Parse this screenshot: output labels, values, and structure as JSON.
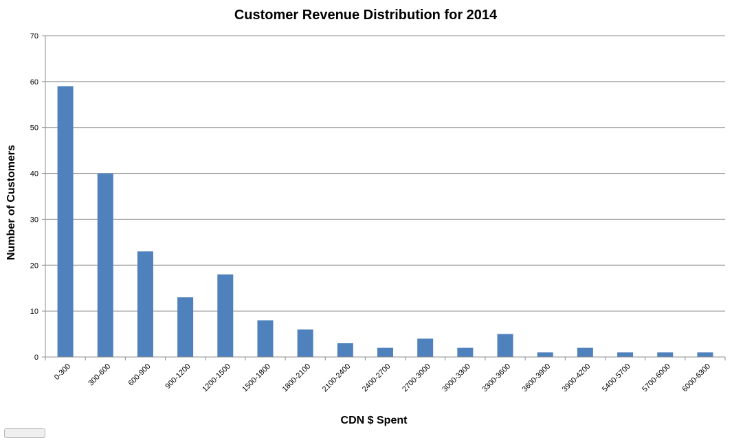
{
  "chart_data": {
    "type": "bar",
    "title": "Customer Revenue Distribution for 2014",
    "xlabel": "CDN $ Spent",
    "ylabel": "Number of Customers",
    "categories": [
      "0-300",
      "300-600",
      "600-900",
      "900-1200",
      "1200-1500",
      "1500-1800",
      "1800-2100",
      "2100-2400",
      "2400-2700",
      "2700-3000",
      "3000-3300",
      "3300-3600",
      "3600-3900",
      "3900-4200",
      "5400-5700",
      "5700-6000",
      "6000-6300"
    ],
    "values": [
      59,
      40,
      23,
      13,
      18,
      8,
      6,
      3,
      2,
      4,
      2,
      5,
      1,
      2,
      1,
      1,
      1
    ],
    "ylim": [
      0,
      70
    ],
    "yticks": [
      0,
      10,
      20,
      30,
      40,
      50,
      60,
      70
    ],
    "grid": true,
    "legend": "none",
    "bar_color": "#4f81bd"
  }
}
